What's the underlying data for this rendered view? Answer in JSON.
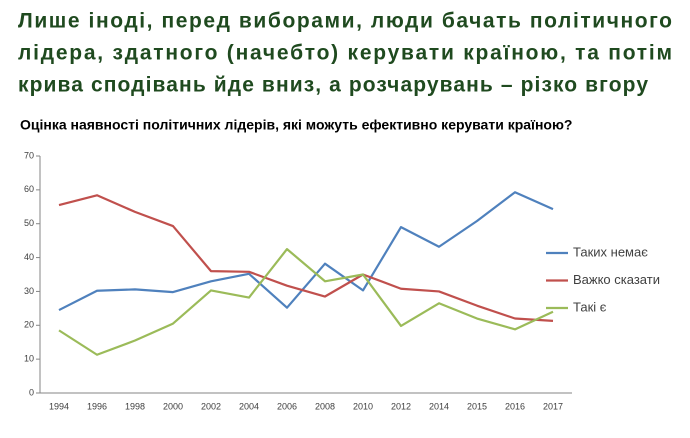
{
  "heading": [
    "Лише іноді, перед виборами, люди бачать політичного",
    "лідера, здатного (начебто) керувати країною, та потім",
    "крива сподівань йде вниз, а розчарувань – різко вгору"
  ],
  "chart_data": {
    "type": "line",
    "title": "Оцінка наявності політичних лідерів, які можуть ефективно керувати країною?",
    "categories": [
      "1994",
      "1996",
      "1998",
      "2000",
      "2002",
      "2004",
      "2006",
      "2008",
      "2010",
      "2012",
      "2014",
      "2015",
      "2016",
      "2017"
    ],
    "series": [
      {
        "name": "Таких немає",
        "color": "#4f81bd",
        "values": [
          24.5,
          30.2,
          30.6,
          29.8,
          33,
          35.2,
          25.2,
          38.2,
          30.3,
          49,
          43.2,
          50.8,
          59.3,
          54.3
        ]
      },
      {
        "name": "Важко сказати",
        "color": "#c0504d",
        "values": [
          55.5,
          58.4,
          53.5,
          49.3,
          36,
          35.8,
          31.7,
          28.5,
          35,
          30.8,
          30,
          25.8,
          22,
          21.3
        ]
      },
      {
        "name": "Такі є",
        "color": "#9bbb59",
        "values": [
          18.5,
          11.3,
          15.5,
          20.5,
          30.3,
          28.2,
          42.5,
          33,
          35,
          19.8,
          26.5,
          22,
          18.8,
          24
        ]
      }
    ],
    "ylim": [
      0,
      70
    ],
    "yticks": [
      0,
      10,
      20,
      30,
      40,
      50,
      60,
      70
    ],
    "grid": false,
    "legend": "right"
  }
}
